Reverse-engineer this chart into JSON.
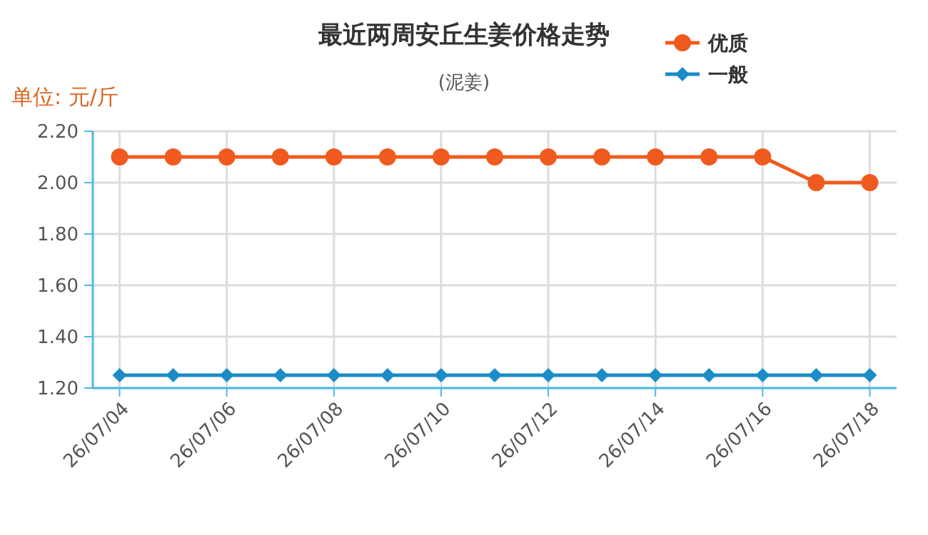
{
  "chart_data": {
    "type": "line",
    "title": "最近两周安丘生姜价格走势",
    "subtitle": "(泥姜)",
    "ylabel": "单位: 元/斤",
    "categories": [
      "26/07/04",
      null,
      "26/07/06",
      null,
      "26/07/08",
      null,
      "26/07/10",
      null,
      "26/07/12",
      null,
      "26/07/14",
      null,
      "26/07/16",
      null,
      "26/07/18"
    ],
    "series": [
      {
        "name": "优质",
        "color": "#f05a1e",
        "marker": "circle",
        "values": [
          2.1,
          2.1,
          2.1,
          2.1,
          2.1,
          2.1,
          2.1,
          2.1,
          2.1,
          2.1,
          2.1,
          2.1,
          2.1,
          2.0,
          2.0
        ]
      },
      {
        "name": "一般",
        "color": "#1a8cc8",
        "marker": "diamond",
        "values": [
          1.25,
          1.25,
          1.25,
          1.25,
          1.25,
          1.25,
          1.25,
          1.25,
          1.25,
          1.25,
          1.25,
          1.25,
          1.25,
          1.25,
          1.25
        ]
      }
    ],
    "ylim": [
      1.2,
      2.2
    ],
    "yticks": [
      {
        "value": 1.2,
        "label": "1.20"
      },
      {
        "value": 1.4,
        "label": "1.40"
      },
      {
        "value": 1.6,
        "label": "1.60"
      },
      {
        "value": 1.8,
        "label": "1.80"
      },
      {
        "value": 2.0,
        "label": "2.00"
      },
      {
        "value": 2.2,
        "label": "2.20"
      }
    ],
    "grid": true,
    "legend": "top right"
  }
}
